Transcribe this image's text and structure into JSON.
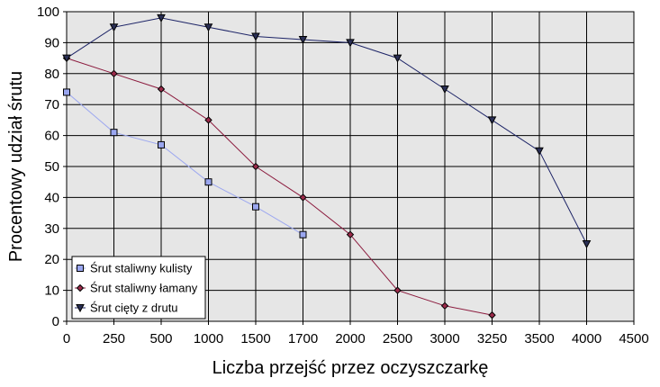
{
  "chart_data": {
    "type": "line",
    "title": "",
    "xlabel": "Liczba przejść przez oczyszczarkę",
    "ylabel": "Procentowy udział śrutu",
    "x_tick_labels": [
      "0",
      "250",
      "500",
      "1000",
      "1500",
      "1700",
      "2000",
      "2500",
      "3000",
      "3250",
      "3500",
      "4000",
      "4500"
    ],
    "y_ticks": [
      0,
      10,
      20,
      30,
      40,
      50,
      60,
      70,
      80,
      90,
      100
    ],
    "ylim": [
      0,
      100
    ],
    "grid": true,
    "plot_background": "#e6e6e6",
    "legend_position": "bottom-left",
    "series": [
      {
        "name": "Śrut staliwny kulisty",
        "color": "#9da8f0",
        "marker_fill": "#9aa6ef",
        "marker": "square",
        "x": [
          "0",
          "250",
          "500",
          "1000",
          "1500",
          "1700"
        ],
        "values": [
          74,
          61,
          57,
          45,
          37,
          28
        ]
      },
      {
        "name": "Śrut staliwny łamany",
        "color": "#8b1a3d",
        "marker_fill": "#9b2a4a",
        "marker": "diamond",
        "x": [
          "0",
          "250",
          "500",
          "1000",
          "1500",
          "1700",
          "2000",
          "2500",
          "3000",
          "3250"
        ],
        "values": [
          85,
          80,
          75,
          65,
          50,
          40,
          28,
          10,
          5,
          2
        ]
      },
      {
        "name": "Śrut cięty z drutu",
        "color": "#1c2366",
        "marker_fill": "#2a2f55",
        "marker": "triangle-down",
        "x": [
          "0",
          "250",
          "500",
          "1000",
          "1500",
          "1700",
          "2000",
          "2500",
          "3000",
          "3250",
          "3500",
          "4000"
        ],
        "values": [
          85,
          95,
          98,
          95,
          92,
          91,
          90,
          85,
          75,
          65,
          55,
          25
        ]
      }
    ]
  }
}
